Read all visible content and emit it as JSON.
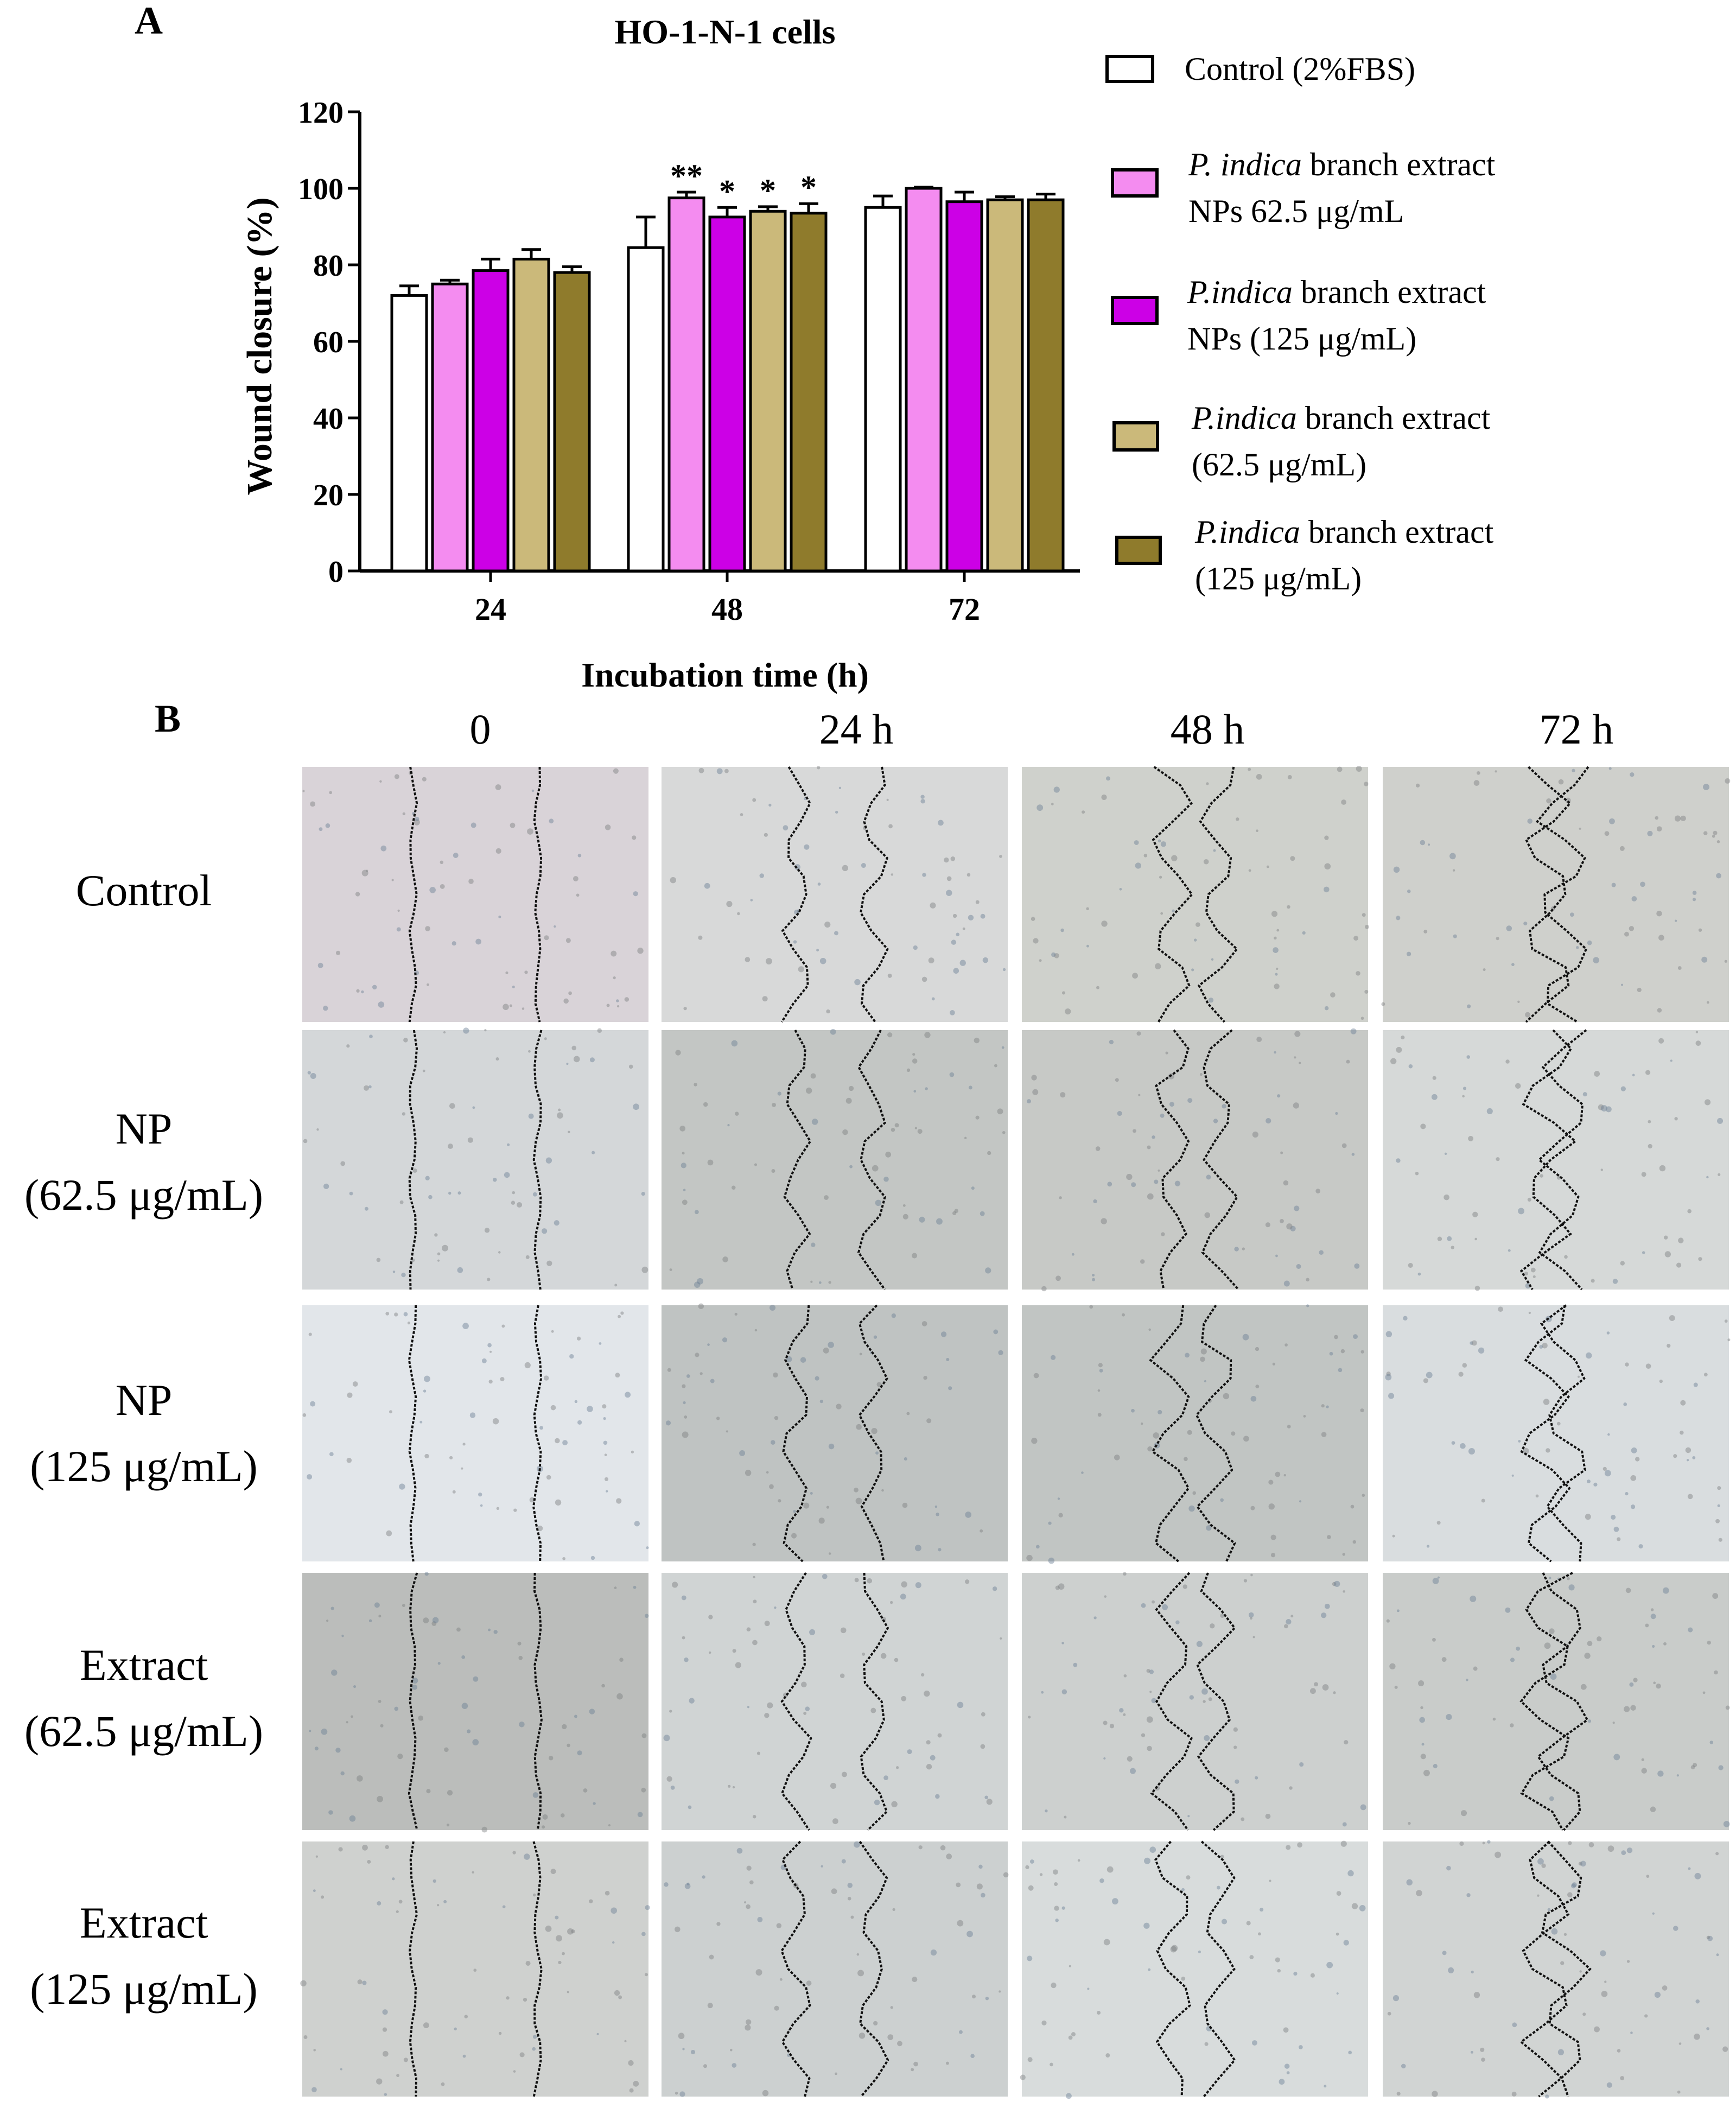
{
  "panel_a": {
    "label": "A",
    "legend": [
      {
        "lines": [
          [
            {
              "t": "Control (2%FBS)",
              "i": false
            }
          ]
        ],
        "color": "#ffffff"
      },
      {
        "lines": [
          [
            {
              "t": "P. indica",
              "i": true
            },
            {
              "t": " branch extract",
              "i": false
            }
          ],
          [
            {
              "t": " NPs 62.5 μg/mL",
              "i": false
            }
          ]
        ],
        "color": "#f48cf0"
      },
      {
        "lines": [
          [
            {
              "t": "P.indica",
              "i": true
            },
            {
              "t": " branch extract",
              "i": false
            }
          ],
          [
            {
              "t": "NPs (125 μg/mL)",
              "i": false
            }
          ]
        ],
        "color": "#cc00e6"
      },
      {
        "lines": [
          [
            {
              "t": "P.indica",
              "i": true
            },
            {
              "t": " branch extract",
              "i": false
            }
          ],
          [
            {
              "t": " (62.5 μg/mL)",
              "i": false
            }
          ]
        ],
        "color": "#cbb97a"
      },
      {
        "lines": [
          [
            {
              "t": "P.indica",
              "i": true
            },
            {
              "t": " branch extract",
              "i": false
            }
          ],
          [
            {
              "t": " (125 μg/mL)",
              "i": false
            }
          ]
        ],
        "color": "#8f7b2c"
      }
    ]
  },
  "chart_data": {
    "type": "bar",
    "title": "HO-1-N-1 cells",
    "xlabel": "Incubation time (h)",
    "ylabel": "Wound closure (%)",
    "ylim": [
      0,
      120
    ],
    "yticks": [
      0,
      20,
      40,
      60,
      80,
      100,
      120
    ],
    "categories": [
      "24",
      "48",
      "72"
    ],
    "series": [
      {
        "name": "Control (2%FBS)",
        "color": "#ffffff",
        "values": [
          72,
          84.5,
          95
        ],
        "errors": [
          2.5,
          8,
          3
        ],
        "sig": [
          "",
          "",
          ""
        ]
      },
      {
        "name": "P. indica branch extract NPs 62.5 μg/mL",
        "color": "#f48cf0",
        "values": [
          75,
          97.5,
          100
        ],
        "errors": [
          1,
          1.5,
          0.3
        ],
        "sig": [
          "",
          "**",
          ""
        ]
      },
      {
        "name": "P.indica branch extract NPs (125 μg/mL)",
        "color": "#cc00e6",
        "values": [
          78.5,
          92.5,
          96.5
        ],
        "errors": [
          3,
          2.5,
          2.5
        ],
        "sig": [
          "",
          "*",
          ""
        ]
      },
      {
        "name": "P.indica branch extract (62.5 μg/mL)",
        "color": "#cbb97a",
        "values": [
          81.5,
          94,
          97
        ],
        "errors": [
          2.5,
          1.2,
          0.8
        ],
        "sig": [
          "",
          "*",
          ""
        ]
      },
      {
        "name": "P.indica branch extract (125 μg/mL)",
        "color": "#8f7b2c",
        "values": [
          78,
          93.5,
          97
        ],
        "errors": [
          1.5,
          2.5,
          1.5
        ],
        "sig": [
          "",
          "*",
          ""
        ]
      }
    ]
  },
  "panel_b": {
    "label": "B",
    "columns": [
      "0",
      "24 h",
      "48 h",
      "72 h"
    ],
    "rows": [
      {
        "lines": [
          "Control"
        ]
      },
      {
        "lines": [
          "NP",
          "(62.5 μg/mL)"
        ]
      },
      {
        "lines": [
          "NP",
          "(125 μg/mL)"
        ]
      },
      {
        "lines": [
          "Extract",
          "(62.5 μg/mL)"
        ]
      },
      {
        "lines": [
          "Extract",
          "(125 μg/mL)"
        ]
      }
    ],
    "tile_colors": [
      [
        "#d9d3d8",
        "#d8d9d9",
        "#cfd1cc",
        "#cfd0cc"
      ],
      [
        "#d4d7d9",
        "#c3c6c4",
        "#c7c9c6",
        "#d6d9d8"
      ],
      [
        "#e2e6ea",
        "#bfc3c2",
        "#c1c5c3",
        "#d9dddf"
      ],
      [
        "#bbbdbb",
        "#d0d4d4",
        "#cdd0cf",
        "#c9ccca"
      ],
      [
        "#cfd1cf",
        "#ccd0d0",
        "#d8dcdc",
        "#d1d4d3"
      ]
    ]
  }
}
